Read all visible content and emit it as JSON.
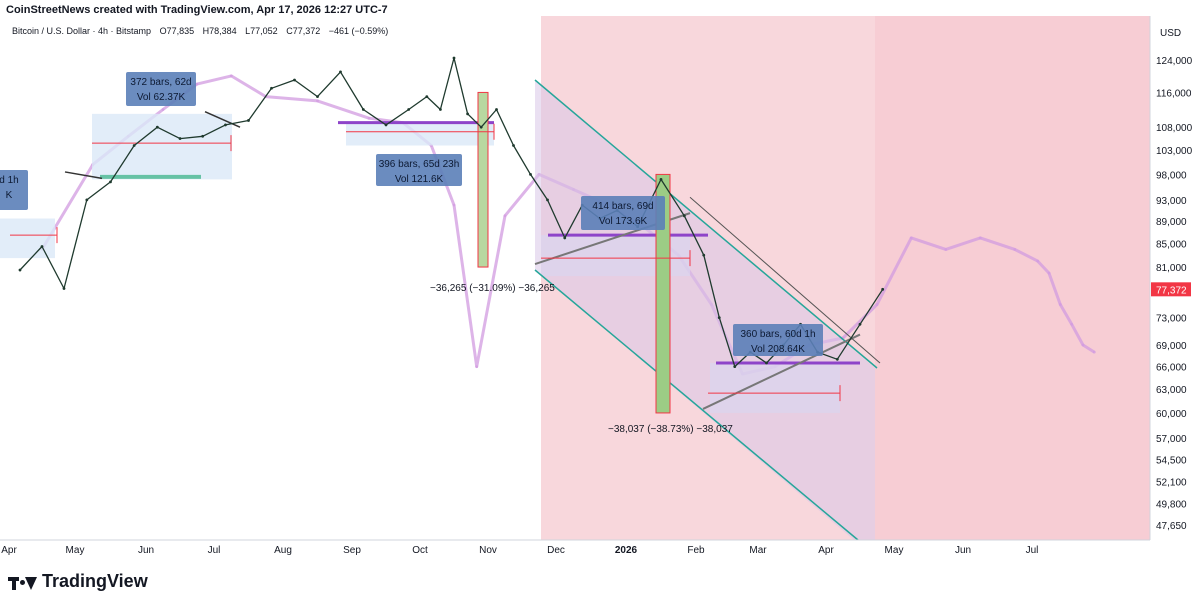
{
  "header": {
    "credit": "CoinStreetNews created with TradingView.com, Apr 17, 2026 12:27 UTC-7"
  },
  "symbol": {
    "name": "Bitcoin / U.S. Dollar · 4h · Bitstamp",
    "open": "O77,835",
    "high": "H78,384",
    "low": "L77,052",
    "close": "C77,372",
    "change": "−461 (−0.59%)"
  },
  "footer": {
    "brand": "TradingView"
  },
  "colors": {
    "up": "#089981",
    "down": "#f23645",
    "shade": "#f8d7dc",
    "box": "#dbe8f7",
    "ghost": "#d29be0",
    "channel": "#26a69a",
    "level": "#8e44c9",
    "tool": "#f23645"
  },
  "chart_data": {
    "type": "line",
    "currency": "USD",
    "y_scale": "log",
    "y_ticks": [
      124000,
      116000,
      108000,
      103000,
      98000,
      93000,
      89000,
      85000,
      81000,
      77372,
      73000,
      69000,
      66000,
      63000,
      60000,
      57000,
      54500,
      52100,
      49800,
      47650
    ],
    "y_tick_labels": [
      "124,000",
      "116,000",
      "108,000",
      "103,000",
      "98,000",
      "93,000",
      "89,000",
      "85,000",
      "81,000",
      "77,372",
      "73,000",
      "69,000",
      "66,000",
      "63,000",
      "60,000",
      "57,000",
      "54,500",
      "52,100",
      "49,800",
      "47,650"
    ],
    "last_price": 77372,
    "x_labels": [
      "Apr",
      "May",
      "Jun",
      "Jul",
      "Aug",
      "Sep",
      "Oct",
      "Nov",
      "Dec",
      "2026",
      "Feb",
      "Mar",
      "Apr",
      "May",
      "Jun",
      "Jul"
    ],
    "price_series": {
      "name": "BTCUSD 4h",
      "points": [
        [
          "Apr",
          80500
        ],
        [
          "Apr",
          84500
        ],
        [
          "Apr",
          77500
        ],
        [
          "May",
          93000
        ],
        [
          "May",
          96500
        ],
        [
          "May",
          104000
        ],
        [
          "Jun",
          108000
        ],
        [
          "Jun",
          105500
        ],
        [
          "Jun",
          106000
        ],
        [
          "Jul",
          108500
        ],
        [
          "Jul",
          109500
        ],
        [
          "Jul",
          117000
        ],
        [
          "Aug",
          119000
        ],
        [
          "Aug",
          115000
        ],
        [
          "Aug",
          121000
        ],
        [
          "Sep",
          112000
        ],
        [
          "Sep",
          108500
        ],
        [
          "Sep",
          112000
        ],
        [
          "Oct",
          115000
        ],
        [
          "Oct",
          112000
        ],
        [
          "Oct",
          124500
        ],
        [
          "Oct",
          111000
        ],
        [
          "Oct",
          108000
        ],
        [
          "Nov",
          112000
        ],
        [
          "Nov",
          104000
        ],
        [
          "Nov",
          98000
        ],
        [
          "Nov",
          93000
        ],
        [
          "Dec",
          86000
        ],
        [
          "Dec",
          92000
        ],
        [
          "Dec",
          89500
        ],
        [
          "Dec",
          91000
        ],
        [
          "2026",
          88000
        ],
        [
          "2026",
          97000
        ],
        [
          "2026",
          90000
        ],
        [
          "Feb",
          83000
        ],
        [
          "Feb",
          73000
        ],
        [
          "Feb",
          66000
        ],
        [
          "Feb",
          68000
        ],
        [
          "Mar",
          66500
        ],
        [
          "Mar",
          69000
        ],
        [
          "Mar",
          72000
        ],
        [
          "Mar",
          68000
        ],
        [
          "Apr",
          67000
        ],
        [
          "Apr",
          72000
        ],
        [
          "Apr",
          77372
        ]
      ]
    },
    "ghost_series": {
      "name": "fractal overlay",
      "points": [
        [
          "Apr",
          84000
        ],
        [
          "May",
          100000
        ],
        [
          "May",
          106000
        ],
        [
          "Jun",
          112000
        ],
        [
          "Jun",
          118000
        ],
        [
          "Jul",
          120000
        ],
        [
          "Jul",
          115000
        ],
        [
          "Aug",
          114000
        ],
        [
          "Sep",
          110000
        ],
        [
          "Sep",
          109000
        ],
        [
          "Oct",
          104000
        ],
        [
          "Oct",
          92000
        ],
        [
          "Oct",
          66000
        ],
        [
          "Nov",
          90000
        ],
        [
          "Nov",
          98000
        ],
        [
          "Dec",
          95000
        ],
        [
          "Dec",
          92000
        ],
        [
          "2026",
          88000
        ],
        [
          "2026",
          83000
        ],
        [
          "Feb",
          75000
        ],
        [
          "Feb",
          65000
        ],
        [
          "Mar",
          66000
        ],
        [
          "Mar",
          69000
        ],
        [
          "Apr",
          70000
        ],
        [
          "Apr",
          75000
        ],
        [
          "May",
          86000
        ],
        [
          "May",
          84000
        ],
        [
          "Jun",
          86000
        ],
        [
          "Jun",
          84000
        ],
        [
          "Jul",
          82000
        ],
        [
          "Jul",
          80000
        ],
        [
          "Jul",
          75000
        ],
        [
          "Jul",
          72000
        ],
        [
          "Jul",
          69000
        ],
        [
          "Jul",
          68000
        ]
      ]
    },
    "annotations": [
      {
        "label_lines": [
          "d 1h",
          "K"
        ]
      },
      {
        "label_lines": [
          "372 bars, 62d",
          "Vol 62.37K"
        ]
      },
      {
        "label_lines": [
          "396 bars, 65d 23h",
          "Vol 121.6K"
        ]
      },
      {
        "label_lines": [
          "414 bars, 69d",
          "Vol 173.6K"
        ]
      },
      {
        "label_lines": [
          "360 bars, 60d 1h",
          "Vol 208.64K"
        ]
      }
    ],
    "measurements": [
      {
        "text": "−36,265 (−31.09%) −36,265"
      },
      {
        "text": "−38,037 (−38.73%) −38,037"
      }
    ],
    "grid": false,
    "legend": "none"
  }
}
